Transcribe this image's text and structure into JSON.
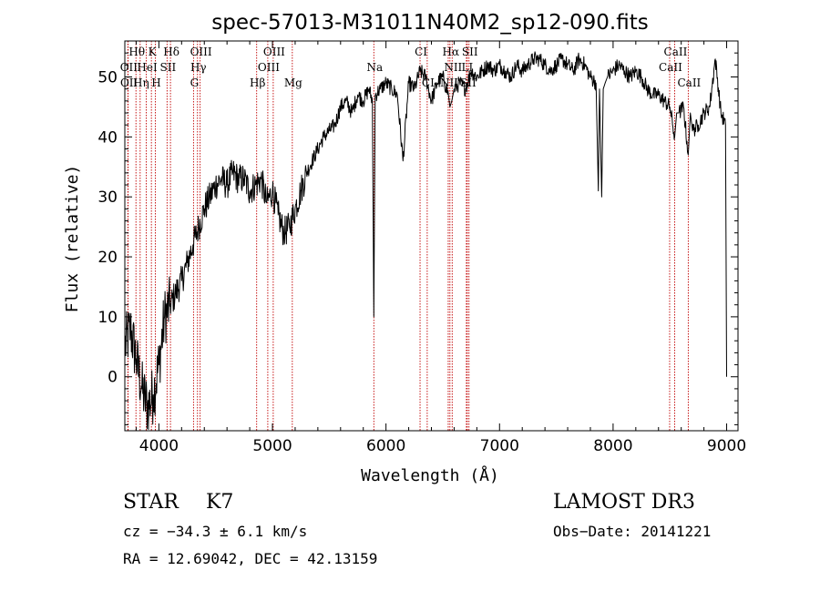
{
  "chart_data": {
    "type": "line",
    "title": "spec-57013-M31011N40M2_sp12-090.fits",
    "xlabel": "Wavelength (Å)",
    "ylabel": "Flux (relative)",
    "xlim": [
      3700,
      9100
    ],
    "ylim": [
      -9,
      56
    ],
    "xticks": [
      4000,
      5000,
      6000,
      7000,
      8000,
      9000
    ],
    "yticks": [
      0,
      10,
      20,
      30,
      40,
      50
    ],
    "series": [
      {
        "name": "flux",
        "x": [
          3700,
          3750,
          3800,
          3850,
          3900,
          3950,
          4000,
          4050,
          4100,
          4150,
          4200,
          4250,
          4300,
          4350,
          4400,
          4450,
          4500,
          4550,
          4600,
          4650,
          4700,
          4750,
          4800,
          4850,
          4900,
          4950,
          5000,
          5050,
          5100,
          5150,
          5200,
          5250,
          5300,
          5350,
          5400,
          5450,
          5500,
          5550,
          5600,
          5650,
          5700,
          5750,
          5800,
          5850,
          5880,
          5893,
          5905,
          5950,
          6000,
          6050,
          6100,
          6150,
          6200,
          6250,
          6300,
          6350,
          6400,
          6450,
          6500,
          6550,
          6563,
          6580,
          6600,
          6650,
          6700,
          6750,
          6800,
          6850,
          6900,
          6950,
          7000,
          7050,
          7100,
          7150,
          7200,
          7250,
          7300,
          7350,
          7400,
          7450,
          7500,
          7550,
          7600,
          7650,
          7700,
          7750,
          7800,
          7850,
          7870,
          7880,
          7900,
          7913,
          7930,
          7950,
          8000,
          8050,
          8100,
          8150,
          8200,
          8250,
          8300,
          8350,
          8400,
          8450,
          8500,
          8542,
          8560,
          8580,
          8620,
          8662,
          8680,
          8700,
          8750,
          8800,
          8850,
          8900,
          8950,
          8990,
          9000
        ],
        "y": [
          5,
          8,
          3,
          -2,
          -5,
          -3,
          2,
          10,
          12,
          14,
          16,
          19,
          22,
          25,
          28,
          30,
          32,
          33,
          32,
          34,
          33,
          33,
          31,
          32,
          33,
          29,
          31,
          27,
          24,
          25,
          28,
          31,
          34,
          36,
          38,
          40,
          41,
          42,
          45,
          46,
          44,
          47,
          46,
          48,
          46,
          10,
          47,
          48,
          49,
          48,
          47,
          36,
          49,
          48,
          51,
          50,
          46,
          49,
          50,
          47,
          45,
          46,
          48,
          49,
          48,
          51,
          50,
          51,
          52,
          51,
          52,
          51,
          50,
          52,
          51,
          52,
          53,
          53,
          52,
          51,
          52,
          53,
          52,
          51,
          53,
          52,
          50,
          49,
          31,
          48,
          30,
          48,
          49,
          50,
          51,
          52,
          51,
          50,
          51,
          50,
          48,
          47,
          47,
          46,
          45,
          40,
          44,
          44,
          45,
          37,
          44,
          41,
          42,
          44,
          45,
          53,
          44,
          42,
          0
        ],
        "note": "values estimated from the plotted curve"
      }
    ],
    "line_markers": [
      {
        "label": "Hθ",
        "x": 3798,
        "row": 0
      },
      {
        "label": "K",
        "x": 3934,
        "row": 0
      },
      {
        "label": "Hδ",
        "x": 4102,
        "row": 0
      },
      {
        "label": "OIII",
        "x": 4363,
        "row": 0
      },
      {
        "label": "OIII",
        "x": 5007,
        "row": 0
      },
      {
        "label": "CI",
        "x": 6300,
        "row": 0
      },
      {
        "label": "Hα",
        "x": 6563,
        "row": 0
      },
      {
        "label": "SII",
        "x": 6731,
        "row": 0
      },
      {
        "label": "CaII",
        "x": 8542,
        "row": 0
      },
      {
        "label": "OII",
        "x": 3727,
        "row": 1
      },
      {
        "label": "HeI",
        "x": 3889,
        "row": 1
      },
      {
        "label": "SII",
        "x": 4072,
        "row": 1
      },
      {
        "label": "Hγ",
        "x": 4340,
        "row": 1
      },
      {
        "label": "OIII",
        "x": 4959,
        "row": 1
      },
      {
        "label": "Na",
        "x": 5893,
        "row": 1
      },
      {
        "label": "NII",
        "x": 6583,
        "row": 1
      },
      {
        "label": "LI",
        "x": 6708,
        "row": 1
      },
      {
        "label": "CaII",
        "x": 8498,
        "row": 1
      },
      {
        "label": "OII",
        "x": 3729,
        "row": 2
      },
      {
        "label": "Hη",
        "x": 3835,
        "row": 2
      },
      {
        "label": "H",
        "x": 3969,
        "row": 2
      },
      {
        "label": "G",
        "x": 4305,
        "row": 2
      },
      {
        "label": "Hβ",
        "x": 4861,
        "row": 2
      },
      {
        "label": "Mg",
        "x": 5175,
        "row": 2
      },
      {
        "label": "CI",
        "x": 6363,
        "row": 2
      },
      {
        "label": "NII",
        "x": 6548,
        "row": 2
      },
      {
        "label": "SII",
        "x": 6716,
        "row": 2
      },
      {
        "label": "CaII",
        "x": 8662,
        "row": 2
      }
    ]
  },
  "info": {
    "object_type": "STAR",
    "subclass": "K7",
    "survey": "LAMOST DR3",
    "cz": "cz = −34.3 ± 6.1 km/s",
    "obs_date": "Obs−Date: 20141221",
    "coords": "RA =  12.69042, DEC =  42.13159"
  }
}
